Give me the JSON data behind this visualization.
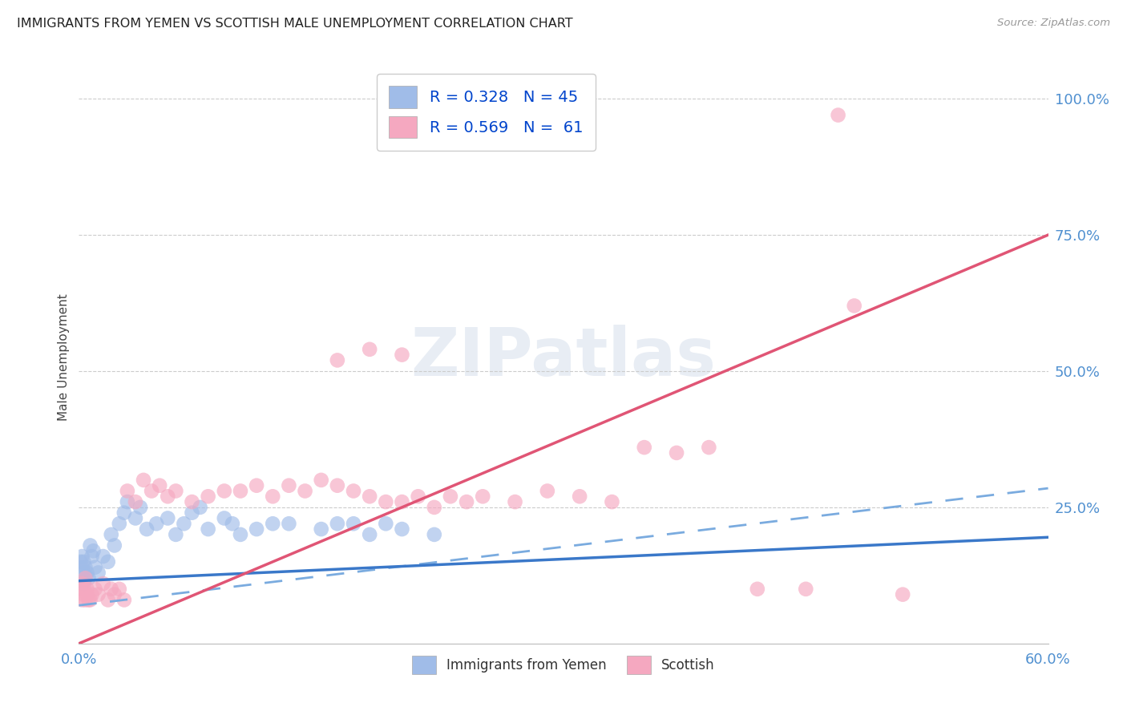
{
  "title": "IMMIGRANTS FROM YEMEN VS SCOTTISH MALE UNEMPLOYMENT CORRELATION CHART",
  "source": "Source: ZipAtlas.com",
  "ylabel": "Male Unemployment",
  "legend_label1": "Immigrants from Yemen",
  "legend_label2": "Scottish",
  "legend_R1": "R = 0.328",
  "legend_N1": "N = 45",
  "legend_R2": "R = 0.569",
  "legend_N2": "N =  61",
  "blue_scatter_color": "#a0bce8",
  "pink_scatter_color": "#f5a8c0",
  "blue_solid_line_color": "#3a78c9",
  "blue_dashed_line_color": "#7aabdf",
  "pink_line_color": "#e05575",
  "label_color": "#5090d0",
  "grid_color": "#cccccc",
  "background_color": "#ffffff",
  "watermark_text": "ZIPatlas",
  "watermark_color": "#ccd8e8",
  "xlim": [
    0.0,
    0.6
  ],
  "ylim": [
    0.0,
    1.05
  ],
  "x_ticks": [
    0.0,
    0.6
  ],
  "x_tick_labels": [
    "0.0%",
    "60.0%"
  ],
  "y_ticks_right": [
    0.25,
    0.5,
    0.75,
    1.0
  ],
  "y_tick_labels_right": [
    "25.0%",
    "50.0%",
    "75.0%",
    "100.0%"
  ],
  "blue_x": [
    0.002,
    0.003,
    0.001,
    0.004,
    0.002,
    0.003,
    0.005,
    0.004,
    0.006,
    0.003,
    0.008,
    0.007,
    0.01,
    0.009,
    0.012,
    0.015,
    0.018,
    0.02,
    0.022,
    0.025,
    0.03,
    0.028,
    0.035,
    0.038,
    0.042,
    0.048,
    0.055,
    0.06,
    0.065,
    0.07,
    0.075,
    0.08,
    0.09,
    0.095,
    0.1,
    0.11,
    0.12,
    0.13,
    0.15,
    0.16,
    0.17,
    0.18,
    0.19,
    0.2,
    0.22
  ],
  "blue_y": [
    0.14,
    0.13,
    0.15,
    0.12,
    0.16,
    0.11,
    0.13,
    0.14,
    0.12,
    0.15,
    0.16,
    0.18,
    0.14,
    0.17,
    0.13,
    0.16,
    0.15,
    0.2,
    0.18,
    0.22,
    0.26,
    0.24,
    0.23,
    0.25,
    0.21,
    0.22,
    0.23,
    0.2,
    0.22,
    0.24,
    0.25,
    0.21,
    0.23,
    0.22,
    0.2,
    0.21,
    0.22,
    0.22,
    0.21,
    0.22,
    0.22,
    0.2,
    0.22,
    0.21,
    0.2
  ],
  "pink_x": [
    0.002,
    0.001,
    0.003,
    0.002,
    0.004,
    0.003,
    0.005,
    0.004,
    0.006,
    0.005,
    0.008,
    0.007,
    0.01,
    0.012,
    0.015,
    0.018,
    0.02,
    0.022,
    0.025,
    0.028,
    0.03,
    0.035,
    0.04,
    0.045,
    0.05,
    0.055,
    0.06,
    0.07,
    0.08,
    0.09,
    0.1,
    0.11,
    0.12,
    0.13,
    0.14,
    0.15,
    0.16,
    0.17,
    0.18,
    0.19,
    0.2,
    0.21,
    0.22,
    0.23,
    0.24,
    0.25,
    0.27,
    0.29,
    0.31,
    0.33,
    0.16,
    0.18,
    0.2,
    0.35,
    0.37,
    0.39,
    0.42,
    0.45,
    0.48,
    0.51,
    0.47
  ],
  "pink_y": [
    0.08,
    0.1,
    0.09,
    0.11,
    0.08,
    0.1,
    0.09,
    0.12,
    0.08,
    0.1,
    0.09,
    0.08,
    0.1,
    0.09,
    0.11,
    0.08,
    0.1,
    0.09,
    0.1,
    0.08,
    0.28,
    0.26,
    0.3,
    0.28,
    0.29,
    0.27,
    0.28,
    0.26,
    0.27,
    0.28,
    0.28,
    0.29,
    0.27,
    0.29,
    0.28,
    0.3,
    0.29,
    0.28,
    0.27,
    0.26,
    0.26,
    0.27,
    0.25,
    0.27,
    0.26,
    0.27,
    0.26,
    0.28,
    0.27,
    0.26,
    0.52,
    0.54,
    0.53,
    0.36,
    0.35,
    0.36,
    0.1,
    0.1,
    0.62,
    0.09,
    0.97
  ],
  "blue_solid_line": {
    "x0": 0.0,
    "x1": 0.6,
    "y0": 0.115,
    "y1": 0.195
  },
  "blue_dashed_line": {
    "x0": 0.0,
    "x1": 0.6,
    "y0": 0.07,
    "y1": 0.285
  },
  "pink_solid_line": {
    "x0": 0.0,
    "x1": 0.6,
    "y0": 0.0,
    "y1": 0.75
  }
}
